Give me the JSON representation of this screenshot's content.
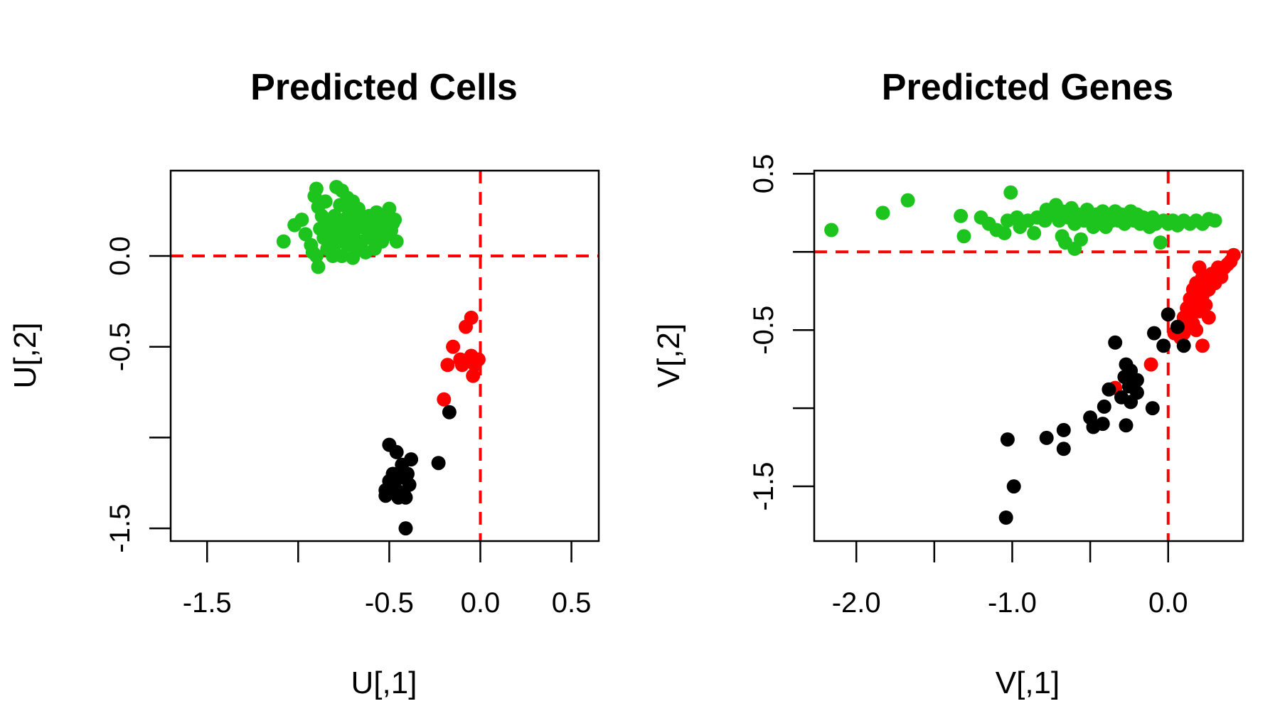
{
  "colors": {
    "green": "#1ec41e",
    "red": "#ff0000",
    "black": "#000000",
    "refline": "#ff0000"
  },
  "chart_data": [
    {
      "type": "scatter",
      "title": "Predicted Cells",
      "xlabel": "U[,1]",
      "ylabel": "U[,2]",
      "xlim": [
        -1.7,
        0.65
      ],
      "ylim": [
        -1.57,
        0.47
      ],
      "x_ticks": [
        -1.5,
        -1.0,
        -0.5,
        0.0,
        0.5
      ],
      "x_tick_labels": [
        "-1.5",
        "",
        "-0.5",
        "0.0",
        "0.5"
      ],
      "y_ticks": [
        -1.5,
        -1.0,
        -0.5,
        0.0
      ],
      "y_tick_labels": [
        "-1.5",
        "",
        "-0.5",
        "0.0"
      ],
      "ref_lines": {
        "x": 0.0,
        "y": 0.0
      },
      "series": [
        {
          "color": "green",
          "points": [
            [
              -1.08,
              0.08
            ],
            [
              -1.02,
              0.17
            ],
            [
              -0.98,
              0.2
            ],
            [
              -0.96,
              0.12
            ],
            [
              -0.93,
              0.06
            ],
            [
              -0.92,
              0.02
            ],
            [
              -0.91,
              0.33
            ],
            [
              -0.9,
              0.37
            ],
            [
              -0.9,
              0.0
            ],
            [
              -0.89,
              0.27
            ],
            [
              -0.89,
              -0.06
            ],
            [
              -0.88,
              0.15
            ],
            [
              -0.87,
              0.22
            ],
            [
              -0.86,
              0.1
            ],
            [
              -0.85,
              0.3
            ],
            [
              -0.84,
              0.04
            ],
            [
              -0.83,
              0.18
            ],
            [
              -0.82,
              0.12
            ],
            [
              -0.81,
              0.0
            ],
            [
              -0.8,
              0.22
            ],
            [
              -0.8,
              0.06
            ],
            [
              -0.79,
              0.38
            ],
            [
              -0.78,
              0.15
            ],
            [
              -0.77,
              0.28
            ],
            [
              -0.77,
              0.1
            ],
            [
              -0.76,
              0.0
            ],
            [
              -0.76,
              0.36
            ],
            [
              -0.75,
              0.2
            ],
            [
              -0.74,
              0.14
            ],
            [
              -0.73,
              0.32
            ],
            [
              -0.73,
              0.06
            ],
            [
              -0.72,
              0.24
            ],
            [
              -0.71,
              0.1
            ],
            [
              -0.71,
              0.18
            ],
            [
              -0.7,
              -0.01
            ],
            [
              -0.7,
              0.3
            ],
            [
              -0.69,
              0.14
            ],
            [
              -0.68,
              0.22
            ],
            [
              -0.68,
              0.04
            ],
            [
              -0.67,
              0.26
            ],
            [
              -0.66,
              0.16
            ],
            [
              -0.65,
              0.08
            ],
            [
              -0.64,
              0.2
            ],
            [
              -0.63,
              0.02
            ],
            [
              -0.62,
              0.14
            ],
            [
              -0.61,
              0.22
            ],
            [
              -0.6,
              0.1
            ],
            [
              -0.59,
              0.18
            ],
            [
              -0.58,
              0.04
            ],
            [
              -0.57,
              0.24
            ],
            [
              -0.56,
              0.14
            ],
            [
              -0.55,
              0.2
            ],
            [
              -0.54,
              0.08
            ],
            [
              -0.53,
              0.16
            ],
            [
              -0.52,
              0.22
            ],
            [
              -0.51,
              0.12
            ],
            [
              -0.5,
              0.26
            ],
            [
              -0.49,
              0.14
            ],
            [
              -0.48,
              0.18
            ],
            [
              -0.47,
              0.2
            ],
            [
              -0.46,
              0.08
            ]
          ]
        },
        {
          "color": "red",
          "points": [
            [
              -0.05,
              -0.34
            ],
            [
              -0.08,
              -0.39
            ],
            [
              -0.15,
              -0.5
            ],
            [
              -0.11,
              -0.57
            ],
            [
              -0.18,
              -0.6
            ],
            [
              -0.1,
              -0.6
            ],
            [
              -0.05,
              -0.55
            ],
            [
              -0.03,
              -0.6
            ],
            [
              -0.01,
              -0.57
            ],
            [
              -0.04,
              -0.66
            ],
            [
              -0.2,
              -0.79
            ]
          ]
        },
        {
          "color": "black",
          "points": [
            [
              -0.17,
              -0.86
            ],
            [
              -0.23,
              -1.14
            ],
            [
              -0.5,
              -1.04
            ],
            [
              -0.46,
              -1.08
            ],
            [
              -0.43,
              -1.15
            ],
            [
              -0.38,
              -1.12
            ],
            [
              -0.4,
              -1.2
            ],
            [
              -0.44,
              -1.22
            ],
            [
              -0.48,
              -1.2
            ],
            [
              -0.5,
              -1.24
            ],
            [
              -0.39,
              -1.26
            ],
            [
              -0.42,
              -1.31
            ],
            [
              -0.46,
              -1.29
            ],
            [
              -0.52,
              -1.29
            ],
            [
              -0.52,
              -1.32
            ],
            [
              -0.45,
              -1.33
            ],
            [
              -0.41,
              -1.33
            ],
            [
              -0.41,
              -1.5
            ]
          ]
        }
      ]
    },
    {
      "type": "scatter",
      "title": "Predicted Genes",
      "xlabel": "V[,1]",
      "ylabel": "V[,2]",
      "xlim": [
        -2.27,
        0.48
      ],
      "ylim": [
        -1.85,
        0.52
      ],
      "x_ticks": [
        -2.0,
        -1.5,
        -1.0,
        -0.5,
        0.0
      ],
      "x_tick_labels": [
        "-2.0",
        "",
        "-1.0",
        "",
        "0.0"
      ],
      "y_ticks": [
        -1.5,
        -1.0,
        -0.5,
        0.0,
        0.5
      ],
      "y_tick_labels": [
        "-1.5",
        "",
        "-0.5",
        "",
        "0.5"
      ],
      "ref_lines": {
        "x": 0.0,
        "y": 0.0
      },
      "series": [
        {
          "color": "green",
          "points": [
            [
              -2.16,
              0.14
            ],
            [
              -1.83,
              0.25
            ],
            [
              -1.67,
              0.33
            ],
            [
              -1.33,
              0.23
            ],
            [
              -1.31,
              0.1
            ],
            [
              -1.2,
              0.22
            ],
            [
              -1.15,
              0.18
            ],
            [
              -1.1,
              0.14
            ],
            [
              -1.05,
              0.12
            ],
            [
              -1.03,
              0.2
            ],
            [
              -1.01,
              0.38
            ],
            [
              -0.97,
              0.22
            ],
            [
              -0.95,
              0.16
            ],
            [
              -0.9,
              0.2
            ],
            [
              -0.86,
              0.12
            ],
            [
              -0.84,
              0.22
            ],
            [
              -0.79,
              0.2
            ],
            [
              -0.78,
              0.27
            ],
            [
              -0.74,
              0.24
            ],
            [
              -0.72,
              0.3
            ],
            [
              -0.7,
              0.2
            ],
            [
              -0.68,
              0.26
            ],
            [
              -0.68,
              0.1
            ],
            [
              -0.66,
              0.06
            ],
            [
              -0.64,
              0.22
            ],
            [
              -0.62,
              0.28
            ],
            [
              -0.6,
              0.02
            ],
            [
              -0.6,
              0.18
            ],
            [
              -0.58,
              0.24
            ],
            [
              -0.56,
              0.08
            ],
            [
              -0.54,
              0.2
            ],
            [
              -0.52,
              0.27
            ],
            [
              -0.5,
              0.22
            ],
            [
              -0.48,
              0.16
            ],
            [
              -0.46,
              0.24
            ],
            [
              -0.44,
              0.2
            ],
            [
              -0.42,
              0.26
            ],
            [
              -0.4,
              0.16
            ],
            [
              -0.38,
              0.22
            ],
            [
              -0.36,
              0.2
            ],
            [
              -0.34,
              0.26
            ],
            [
              -0.32,
              0.2
            ],
            [
              -0.3,
              0.24
            ],
            [
              -0.28,
              0.18
            ],
            [
              -0.26,
              0.22
            ],
            [
              -0.24,
              0.26
            ],
            [
              -0.22,
              0.2
            ],
            [
              -0.2,
              0.24
            ],
            [
              -0.18,
              0.18
            ],
            [
              -0.16,
              0.22
            ],
            [
              -0.14,
              0.2
            ],
            [
              -0.12,
              0.16
            ],
            [
              -0.1,
              0.22
            ],
            [
              -0.08,
              0.18
            ],
            [
              -0.05,
              0.06
            ],
            [
              -0.03,
              0.2
            ],
            [
              0.0,
              0.18
            ],
            [
              0.03,
              0.2
            ],
            [
              0.06,
              0.17
            ],
            [
              0.1,
              0.2
            ],
            [
              0.14,
              0.18
            ],
            [
              0.18,
              0.2
            ],
            [
              0.22,
              0.18
            ],
            [
              0.26,
              0.21
            ],
            [
              0.3,
              0.2
            ]
          ]
        },
        {
          "color": "red",
          "points": [
            [
              0.04,
              -0.52
            ],
            [
              0.06,
              -0.48
            ],
            [
              0.08,
              -0.55
            ],
            [
              0.1,
              -0.42
            ],
            [
              0.1,
              -0.52
            ],
            [
              0.12,
              -0.36
            ],
            [
              0.12,
              -0.46
            ],
            [
              0.14,
              -0.3
            ],
            [
              0.14,
              -0.4
            ],
            [
              0.16,
              -0.24
            ],
            [
              0.16,
              -0.34
            ],
            [
              0.16,
              -0.46
            ],
            [
              0.18,
              -0.2
            ],
            [
              0.18,
              -0.3
            ],
            [
              0.18,
              -0.5
            ],
            [
              0.2,
              -0.1
            ],
            [
              0.2,
              -0.22
            ],
            [
              0.2,
              -0.38
            ],
            [
              0.22,
              -0.16
            ],
            [
              0.22,
              -0.28
            ],
            [
              0.22,
              -0.6
            ],
            [
              0.24,
              -0.2
            ],
            [
              0.24,
              -0.34
            ],
            [
              0.26,
              -0.24
            ],
            [
              0.26,
              -0.42
            ],
            [
              0.28,
              -0.14
            ],
            [
              0.3,
              -0.2
            ],
            [
              0.32,
              -0.1
            ],
            [
              0.34,
              -0.16
            ],
            [
              0.36,
              -0.1
            ],
            [
              0.38,
              -0.08
            ],
            [
              0.4,
              -0.06
            ],
            [
              0.42,
              -0.02
            ],
            [
              -0.11,
              -0.72
            ],
            [
              -0.34,
              -0.87
            ]
          ]
        },
        {
          "color": "black",
          "points": [
            [
              0.0,
              -0.4
            ],
            [
              0.1,
              -0.6
            ],
            [
              0.06,
              -0.48
            ],
            [
              -0.09,
              -0.52
            ],
            [
              -0.03,
              -0.6
            ],
            [
              -0.34,
              -0.58
            ],
            [
              -0.27,
              -0.72
            ],
            [
              -0.24,
              -0.76
            ],
            [
              -0.28,
              -0.8
            ],
            [
              -0.2,
              -0.82
            ],
            [
              -0.25,
              -0.86
            ],
            [
              -0.2,
              -0.9
            ],
            [
              -0.38,
              -0.88
            ],
            [
              -0.3,
              -0.93
            ],
            [
              -0.24,
              -0.96
            ],
            [
              -0.1,
              -1.0
            ],
            [
              -0.41,
              -0.99
            ],
            [
              -0.5,
              -1.06
            ],
            [
              -0.48,
              -1.12
            ],
            [
              -0.42,
              -1.1
            ],
            [
              -0.27,
              -1.11
            ],
            [
              -0.67,
              -1.14
            ],
            [
              -0.78,
              -1.19
            ],
            [
              -0.67,
              -1.26
            ],
            [
              -1.03,
              -1.2
            ],
            [
              -0.99,
              -1.5
            ],
            [
              -1.04,
              -1.7
            ]
          ]
        }
      ]
    }
  ]
}
